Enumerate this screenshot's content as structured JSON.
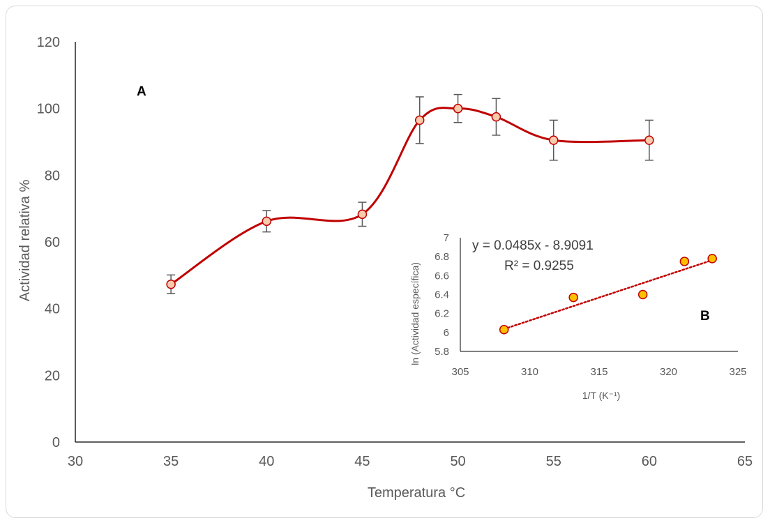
{
  "chart_data": [
    {
      "type": "line",
      "panel_label": "A",
      "xlabel": "Temperatura °C",
      "ylabel": "Actividad relativa %",
      "xlim": [
        30,
        65
      ],
      "ylim": [
        0,
        120
      ],
      "x_ticks": [
        "30",
        "35",
        "40",
        "45",
        "50",
        "55",
        "60",
        "65"
      ],
      "y_ticks": [
        "0",
        "20",
        "40",
        "60",
        "80",
        "100",
        "120"
      ],
      "grid": false,
      "smooth": true,
      "line_color": "#c00000",
      "marker_fill": "#f8cbad",
      "errorbar_color": "#595959",
      "x": [
        35,
        40,
        45,
        48,
        50,
        52,
        55,
        60
      ],
      "y": [
        47.3,
        66.2,
        68.3,
        96.5,
        100,
        97.5,
        90.5,
        90.5
      ],
      "error": [
        2.8,
        3.2,
        3.6,
        7.0,
        4.2,
        5.5,
        6.0,
        6.0
      ]
    },
    {
      "type": "scatter",
      "panel_label": "B",
      "xlabel": "1/T (K⁻¹)",
      "ylabel": "ln  (Actividad específica)",
      "xlim": [
        305,
        325
      ],
      "ylim": [
        5.8,
        7
      ],
      "x_ticks": [
        "305",
        "310",
        "315",
        "320",
        "325"
      ],
      "y_ticks": [
        "5.8",
        "6",
        "6.2",
        "6.4",
        "6.6",
        "6.8",
        "7"
      ],
      "grid": false,
      "marker_fill": "#ffc000",
      "marker_edge": "#c00000",
      "trendline": {
        "style": "dotted",
        "color": "#c00000",
        "slope": 0.0485,
        "intercept": -8.9091
      },
      "equation": "y = 0.0485x - 8.9091",
      "r2": "R² = 0.9255",
      "x": [
        308.15,
        313.15,
        318.15,
        321.15,
        323.15
      ],
      "y": [
        6.03,
        6.37,
        6.4,
        6.75,
        6.78
      ]
    }
  ]
}
